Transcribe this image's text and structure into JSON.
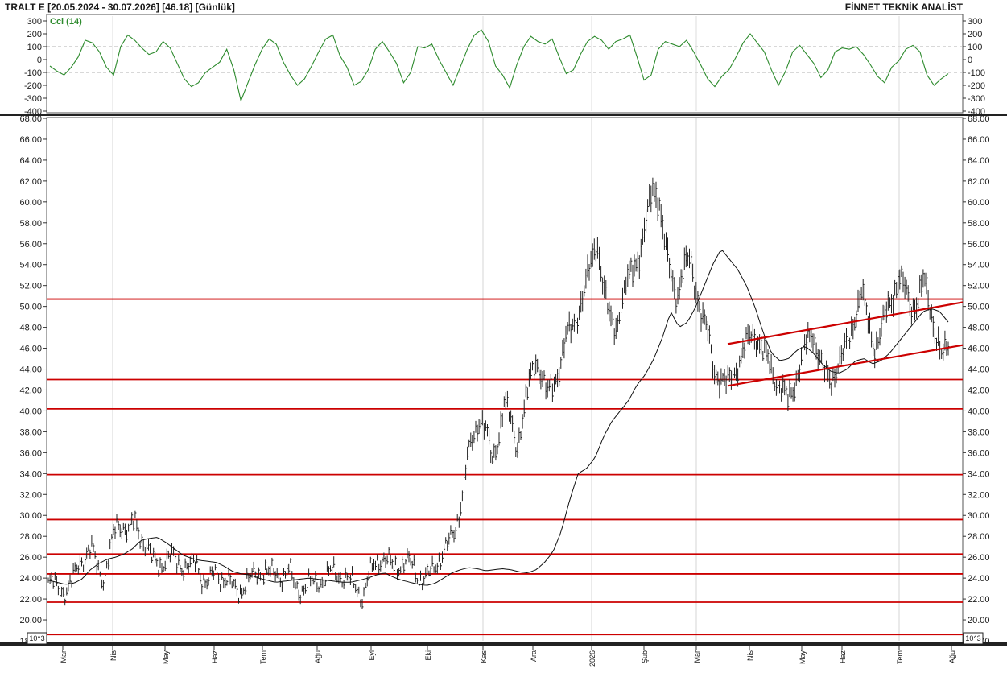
{
  "header": {
    "left_title": "TRALT E  [20.05.2024 - 30.07.2026]  [46.18]  [Günlük]",
    "right_title": "FİNNET TEKNİK ANALİST"
  },
  "colors": {
    "price_bar": "#222222",
    "moving_average": "#111111",
    "support_resistance": "#cc0000",
    "cci_line": "#2e8b2e",
    "grid": "#b0b0b0"
  },
  "scale_badge": "10^3",
  "chart_data": [
    {
      "type": "line",
      "title": "Cci (14)",
      "xlabel": "",
      "ylabel": "",
      "ylim": [
        -400,
        300
      ],
      "yticks": [
        300,
        200,
        100,
        0,
        -100,
        -200,
        -300,
        -400
      ],
      "grid": true,
      "reference_lines": [
        100,
        -100
      ],
      "series": [
        {
          "values": [
            -50,
            -90,
            -120,
            -60,
            20,
            150,
            130,
            60,
            -60,
            -120,
            100,
            190,
            150,
            90,
            40,
            60,
            140,
            90,
            -30,
            -150,
            -210,
            -180,
            -100,
            -60,
            -20,
            80,
            -80,
            -320,
            -180,
            -40,
            80,
            160,
            120,
            -20,
            -120,
            -200,
            -150,
            -50,
            60,
            160,
            190,
            30,
            -60,
            -200,
            -170,
            -80,
            80,
            140,
            60,
            -30,
            -180,
            -100,
            100,
            90,
            120,
            0,
            -100,
            -200,
            -60,
            80,
            190,
            230,
            140,
            -50,
            -120,
            -220,
            -40,
            100,
            180,
            140,
            120,
            160,
            20,
            -110,
            -80,
            40,
            140,
            180,
            150,
            80,
            140,
            160,
            190,
            20,
            -160,
            -120,
            80,
            140,
            120,
            100,
            150,
            60,
            -40,
            -150,
            -210,
            -130,
            -80,
            20,
            130,
            200,
            130,
            60,
            -80,
            -200,
            -90,
            60,
            110,
            40,
            -30,
            -140,
            -80,
            60,
            90,
            80,
            100,
            40,
            -40,
            -130,
            -180,
            -60,
            -10,
            80,
            110,
            60,
            -120,
            -200,
            -150,
            -110
          ]
        }
      ],
      "x_range": [
        "20.05.2024",
        "30.07.2026"
      ]
    },
    {
      "type": "bar",
      "title": "",
      "xlabel": "",
      "ylabel": "",
      "ylim": [
        18.0,
        68.0
      ],
      "yticks": [
        "68.00",
        "66.00",
        "64.00",
        "62.00",
        "60.00",
        "58.00",
        "56.00",
        "54.00",
        "52.00",
        "50.00",
        "48.00",
        "46.00",
        "44.00",
        "42.00",
        "40.00",
        "38.00",
        "36.00",
        "34.00",
        "32.00",
        "30.00",
        "28.00",
        "26.00",
        "24.00",
        "22.00",
        "20.00",
        "18.00"
      ],
      "x_tick_labels": [
        "Mar",
        "Nis",
        "May",
        "Haz",
        "Tem",
        "Ağu",
        "Eyl",
        "Eki",
        "Kas",
        "Ara",
        "2026",
        "Şub",
        "Mar",
        "Nis",
        "May",
        "Haz",
        "Tem",
        "Ağu"
      ],
      "grid": true,
      "horizontal_levels": [
        50.7,
        43.0,
        40.2,
        33.9,
        29.6,
        26.3,
        24.4,
        21.7,
        18.6
      ],
      "channel": {
        "upper": [
          [
            46.4,
            50.4
          ]
        ],
        "lower": [
          [
            42.4,
            46.3
          ]
        ]
      },
      "price_anchors": [
        23.5,
        23.3,
        23.0,
        22.8,
        23.8,
        25.5,
        26.3,
        26.7,
        25.0,
        24.0,
        26.5,
        29.0,
        29.2,
        28.5,
        29.3,
        28.0,
        27.0,
        25.5,
        25.3,
        25.8,
        26.0,
        25.5,
        25.2,
        25.0,
        25.5,
        24.0,
        23.5,
        24.5,
        24.2,
        23.8,
        23.0,
        22.8,
        23.5,
        24.0,
        24.5,
        24.8,
        24.3,
        24.5,
        24.2,
        24.8,
        23.2,
        23.0,
        23.2,
        23.5,
        23.8,
        24.0,
        24.6,
        24.5,
        24.0,
        23.6,
        23.2,
        22.2,
        24.0,
        25.5,
        26.0,
        25.6,
        25.0,
        25.3,
        25.6,
        25.2,
        24.2,
        24.0,
        24.3,
        25.5,
        26.5,
        27.3,
        28.5,
        31.5,
        35.5,
        37.5,
        39.5,
        38.2,
        35.0,
        37.5,
        41.0,
        39.0,
        36.5,
        39.5,
        42.5,
        45.0,
        43.5,
        41.5,
        42.5,
        44.5,
        47.0,
        48.0,
        49.5,
        51.5,
        54.0,
        56.5,
        52.0,
        49.0,
        48.0,
        50.0,
        52.5,
        54.0,
        55.0,
        58.0,
        61.5,
        60.5,
        56.0,
        53.0,
        51.0,
        53.5,
        54.5,
        52.0,
        49.0,
        47.5,
        44.0,
        43.0,
        42.5,
        43.5,
        44.5,
        46.0,
        47.5,
        47.0,
        45.5,
        44.5,
        43.0,
        42.0,
        41.0,
        42.5,
        44.5,
        46.5,
        47.5,
        45.5,
        43.5,
        42.8,
        44.5,
        45.5,
        47.0,
        49.5,
        51.5,
        48.5,
        46.0,
        47.5,
        49.5,
        51.0,
        53.0,
        51.5,
        50.0,
        50.5,
        52.5,
        50.0,
        47.5,
        45.0,
        46.18
      ],
      "moving_average_anchors": [
        23.8,
        23.6,
        23.4,
        23.5,
        23.9,
        24.8,
        25.4,
        25.8,
        26.0,
        26.3,
        26.8,
        27.6,
        27.8,
        27.9,
        27.4,
        26.8,
        26.2,
        25.9,
        25.7,
        25.6,
        25.5,
        25.1,
        24.6,
        24.4,
        24.3,
        24.0,
        23.8,
        23.6,
        23.7,
        23.8,
        23.9,
        24.0,
        23.9,
        23.8,
        23.7,
        23.6,
        23.6,
        23.8,
        24.0,
        24.3,
        24.5,
        24.1,
        23.8,
        23.6,
        23.4,
        23.3,
        23.5,
        24.0,
        24.5,
        24.8,
        25.0,
        24.9,
        24.7,
        24.8,
        24.9,
        24.8,
        24.6,
        24.5,
        24.8,
        25.5,
        26.5,
        28.5,
        31.5,
        34.0,
        34.5,
        35.5,
        37.5,
        39.0,
        40.0,
        41.0,
        42.5,
        43.5,
        45.0,
        47.0,
        49.5,
        48.0,
        48.5,
        50.0,
        52.0,
        54.0,
        55.5,
        54.5,
        53.5,
        52.0,
        50.0,
        47.5,
        45.5,
        44.8,
        45.0,
        45.8,
        46.2,
        45.5,
        44.5,
        43.8,
        43.6,
        44.0,
        44.8,
        45.0,
        44.5,
        44.8,
        45.5,
        46.5,
        47.5,
        48.5,
        49.5,
        49.8,
        49.5,
        48.5
      ]
    }
  ]
}
